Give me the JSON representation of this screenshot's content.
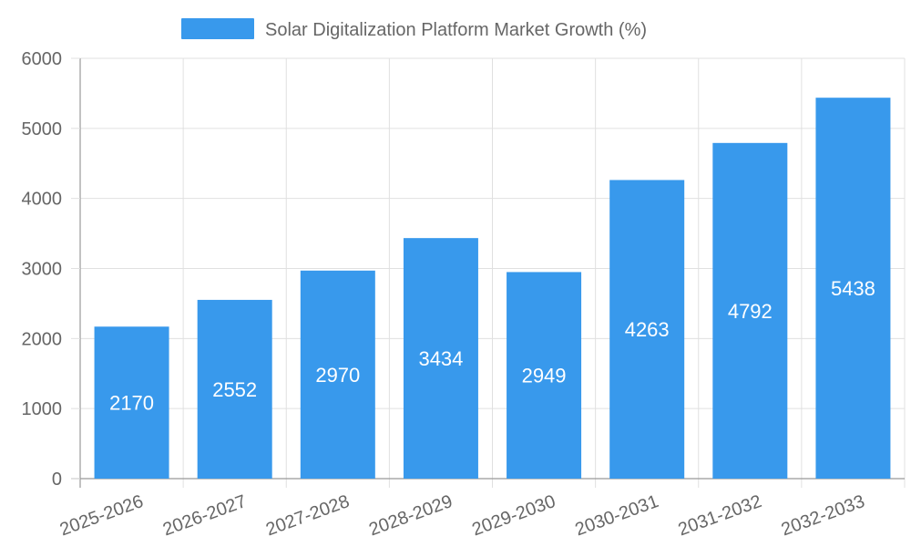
{
  "chart_data": {
    "type": "bar",
    "categories": [
      "2025-2026",
      "2026-2027",
      "2027-2028",
      "2028-2029",
      "2029-2030",
      "2030-2031",
      "2031-2032",
      "2032-2033"
    ],
    "series": [
      {
        "name": "Solar Digitalization Platform Market Growth (%)",
        "values": [
          2170,
          2552,
          2970,
          3434,
          2949,
          4263,
          4792,
          5438
        ]
      }
    ],
    "xlabel": "",
    "ylabel": "",
    "ylim": [
      0,
      6000
    ],
    "yticks": [
      0,
      1000,
      2000,
      3000,
      4000,
      5000,
      6000
    ],
    "grid": true,
    "legend_position": "top-center",
    "data_labels": true,
    "colors": {
      "bar": "#3899ec",
      "grid": "#e0e0e0",
      "axis": "#999999",
      "text": "#666666"
    }
  }
}
